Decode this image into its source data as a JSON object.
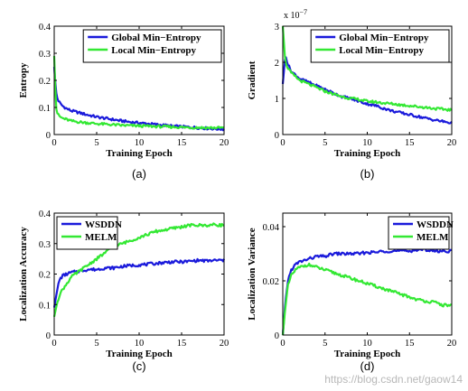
{
  "watermark": "https://blog.csdn.net/gaow14",
  "colors": {
    "blue": "#1a1adb",
    "green": "#33e833"
  },
  "chart_data": [
    {
      "type": "line",
      "caption": "(a)",
      "xlabel": "Training Epoch",
      "ylabel": "Entropy",
      "exponent": "",
      "xlim": [
        0,
        20
      ],
      "ylim": [
        0,
        0.4
      ],
      "xticks": [
        "0",
        "5",
        "10",
        "15",
        "20"
      ],
      "xtick_values": [
        0,
        5,
        10,
        15,
        20
      ],
      "yticks": [
        "0",
        "0.1",
        "0.2",
        "0.3",
        "0.4"
      ],
      "ytick_values": [
        0,
        0.1,
        0.2,
        0.3,
        0.4
      ],
      "legend": "top-right",
      "series": [
        {
          "name": "Global Min−Entropy",
          "color": "blue",
          "x": [
            0,
            0.2,
            0.4,
            0.7,
            1,
            1.5,
            2,
            3,
            4,
            5,
            6,
            7,
            8,
            9,
            10,
            11,
            12,
            13,
            14,
            15,
            16,
            17,
            18,
            19,
            20
          ],
          "y": [
            0.25,
            0.16,
            0.13,
            0.115,
            0.105,
            0.095,
            0.088,
            0.08,
            0.072,
            0.065,
            0.06,
            0.055,
            0.05,
            0.046,
            0.043,
            0.04,
            0.037,
            0.034,
            0.031,
            0.029,
            0.027,
            0.025,
            0.023,
            0.021,
            0.02
          ]
        },
        {
          "name": "Local Min−Entropy",
          "color": "green",
          "x": [
            0,
            0.2,
            0.4,
            0.7,
            1,
            1.5,
            2,
            3,
            4,
            5,
            6,
            7,
            8,
            9,
            10,
            11,
            12,
            13,
            14,
            15,
            16,
            17,
            18,
            19,
            20
          ],
          "y": [
            0.29,
            0.1,
            0.075,
            0.065,
            0.06,
            0.055,
            0.05,
            0.046,
            0.043,
            0.04,
            0.038,
            0.036,
            0.034,
            0.033,
            0.032,
            0.031,
            0.03,
            0.029,
            0.028,
            0.027,
            0.026,
            0.026,
            0.025,
            0.025,
            0.025
          ]
        }
      ]
    },
    {
      "type": "line",
      "caption": "(b)",
      "xlabel": "Training Epoch",
      "ylabel": "Gradient",
      "exponent": "x 10",
      "exponent_power": "−7",
      "xlim": [
        0,
        20
      ],
      "ylim": [
        0,
        3
      ],
      "xticks": [
        "0",
        "5",
        "10",
        "15",
        "20"
      ],
      "xtick_values": [
        0,
        5,
        10,
        15,
        20
      ],
      "yticks": [
        "0",
        "1",
        "2",
        "3"
      ],
      "ytick_values": [
        0,
        1,
        2,
        3
      ],
      "legend": "top-right",
      "series": [
        {
          "name": "Global Min−Entropy",
          "color": "blue",
          "x": [
            0,
            0.3,
            0.6,
            1,
            1.5,
            2,
            3,
            4,
            5,
            6,
            7,
            8,
            9,
            10,
            11,
            12,
            13,
            14,
            15,
            16,
            17,
            18,
            19,
            20
          ],
          "y": [
            1.4,
            2.2,
            1.95,
            1.75,
            1.65,
            1.55,
            1.45,
            1.35,
            1.25,
            1.15,
            1.05,
            1.0,
            0.92,
            0.85,
            0.8,
            0.72,
            0.65,
            0.6,
            0.55,
            0.5,
            0.45,
            0.4,
            0.36,
            0.32
          ]
        },
        {
          "name": "Local Min−Entropy",
          "color": "green",
          "x": [
            0,
            0.3,
            0.6,
            1,
            1.5,
            2,
            3,
            4,
            5,
            6,
            7,
            8,
            9,
            10,
            11,
            12,
            13,
            14,
            15,
            16,
            17,
            18,
            19,
            20
          ],
          "y": [
            3.0,
            2.0,
            1.85,
            1.7,
            1.6,
            1.5,
            1.4,
            1.3,
            1.2,
            1.12,
            1.05,
            1.0,
            0.97,
            0.92,
            0.9,
            0.87,
            0.85,
            0.82,
            0.8,
            0.77,
            0.75,
            0.72,
            0.7,
            0.68
          ]
        }
      ]
    },
    {
      "type": "line",
      "caption": "(c)",
      "xlabel": "Training Epoch",
      "ylabel": "Localization Accuracy",
      "exponent": "",
      "xlim": [
        0,
        20
      ],
      "ylim": [
        0,
        0.4
      ],
      "xticks": [
        "0",
        "5",
        "10",
        "15",
        "20"
      ],
      "xtick_values": [
        0,
        5,
        10,
        15,
        20
      ],
      "yticks": [
        "0",
        "0.1",
        "0.2",
        "0.3",
        "0.4"
      ],
      "ytick_values": [
        0,
        0.1,
        0.2,
        0.3,
        0.4
      ],
      "legend": "top-left",
      "series": [
        {
          "name": "WSDDN",
          "color": "blue",
          "x": [
            0,
            0.3,
            0.6,
            1,
            1.5,
            2,
            3,
            4,
            5,
            6,
            7,
            8,
            9,
            10,
            11,
            12,
            13,
            14,
            15,
            16,
            17,
            18,
            19,
            20
          ],
          "y": [
            0.09,
            0.14,
            0.18,
            0.195,
            0.2,
            0.205,
            0.21,
            0.215,
            0.215,
            0.22,
            0.22,
            0.225,
            0.228,
            0.23,
            0.232,
            0.235,
            0.238,
            0.24,
            0.24,
            0.242,
            0.245,
            0.243,
            0.245,
            0.245
          ]
        },
        {
          "name": "MELM",
          "color": "green",
          "x": [
            0,
            0.3,
            0.6,
            1,
            1.5,
            2,
            3,
            4,
            5,
            6,
            7,
            8,
            9,
            10,
            11,
            12,
            13,
            14,
            15,
            16,
            17,
            18,
            19,
            20
          ],
          "y": [
            0.06,
            0.1,
            0.13,
            0.15,
            0.17,
            0.19,
            0.21,
            0.23,
            0.25,
            0.27,
            0.29,
            0.3,
            0.31,
            0.32,
            0.33,
            0.34,
            0.345,
            0.35,
            0.355,
            0.36,
            0.36,
            0.36,
            0.362,
            0.36
          ]
        }
      ]
    },
    {
      "type": "line",
      "caption": "(d)",
      "xlabel": "Training Epoch",
      "ylabel": "Localization Variance",
      "exponent": "",
      "xlim": [
        0,
        20
      ],
      "ylim": [
        0,
        0.045
      ],
      "xticks": [
        "0",
        "5",
        "10",
        "15",
        "20"
      ],
      "xtick_values": [
        0,
        5,
        10,
        15,
        20
      ],
      "yticks": [
        "0",
        "0.02",
        "0.04"
      ],
      "ytick_values": [
        0,
        0.02,
        0.04
      ],
      "legend": "top-right",
      "series": [
        {
          "name": "WSDDN",
          "color": "blue",
          "x": [
            0,
            0.3,
            0.6,
            1,
            1.5,
            2,
            3,
            4,
            5,
            6,
            7,
            8,
            9,
            10,
            11,
            12,
            13,
            14,
            15,
            16,
            17,
            18,
            19,
            20
          ],
          "y": [
            0.0,
            0.012,
            0.02,
            0.024,
            0.026,
            0.027,
            0.028,
            0.029,
            0.029,
            0.03,
            0.03,
            0.03,
            0.03,
            0.0305,
            0.0305,
            0.031,
            0.031,
            0.031,
            0.031,
            0.0315,
            0.0315,
            0.031,
            0.031,
            0.031
          ]
        },
        {
          "name": "MELM",
          "color": "green",
          "x": [
            0,
            0.3,
            0.6,
            1,
            1.5,
            2,
            3,
            4,
            5,
            6,
            7,
            8,
            9,
            10,
            11,
            12,
            13,
            14,
            15,
            16,
            17,
            18,
            19,
            20
          ],
          "y": [
            0.0,
            0.01,
            0.018,
            0.022,
            0.024,
            0.025,
            0.026,
            0.025,
            0.024,
            0.023,
            0.022,
            0.021,
            0.02,
            0.019,
            0.018,
            0.017,
            0.016,
            0.015,
            0.014,
            0.013,
            0.0125,
            0.012,
            0.011,
            0.011
          ]
        }
      ]
    }
  ]
}
